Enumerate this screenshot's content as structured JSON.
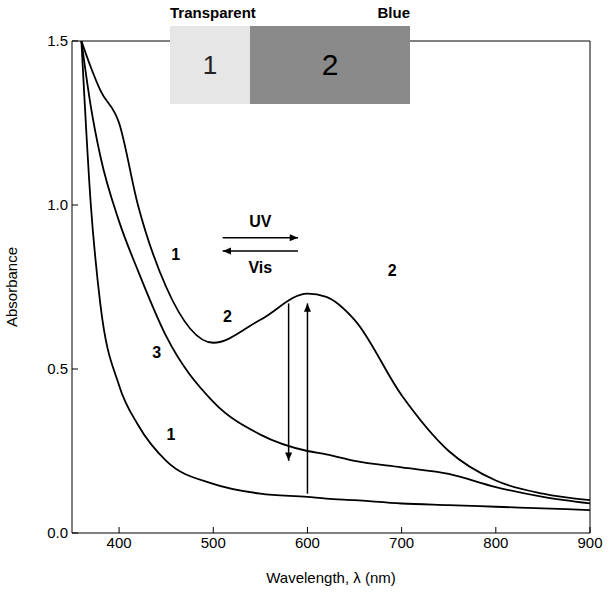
{
  "chart_data": {
    "type": "line",
    "x_label": "Wavelength, λ (nm)",
    "y_label": "Absorbance",
    "x": [
      360,
      370,
      380,
      400,
      420,
      450,
      500,
      550,
      600,
      620,
      650,
      700,
      750,
      800,
      850,
      900
    ],
    "series": [
      {
        "name": "1",
        "color": "#000000",
        "values": [
          1.5,
          1.0,
          0.7,
          0.45,
          0.33,
          0.22,
          0.15,
          0.12,
          0.11,
          0.105,
          0.1,
          0.09,
          0.085,
          0.08,
          0.075,
          0.07
        ]
      },
      {
        "name": "2",
        "color": "#000000",
        "values": [
          1.5,
          1.42,
          1.35,
          1.25,
          1.0,
          0.75,
          0.58,
          0.65,
          0.73,
          0.72,
          0.65,
          0.42,
          0.25,
          0.16,
          0.12,
          0.1
        ]
      },
      {
        "name": "3",
        "color": "#000000",
        "values": [
          1.5,
          1.3,
          1.15,
          0.95,
          0.8,
          0.6,
          0.4,
          0.3,
          0.25,
          0.24,
          0.22,
          0.2,
          0.18,
          0.14,
          0.11,
          0.09
        ]
      }
    ],
    "xlim": [
      350,
      900
    ],
    "xticks": [
      400,
      500,
      600,
      700,
      800,
      900
    ],
    "ylim": [
      0,
      1.5
    ],
    "yticks": [
      {
        "value": 0,
        "label": "0.0"
      },
      {
        "value": 0.5,
        "label": "0.5"
      },
      {
        "value": 1,
        "label": "1.0"
      },
      {
        "value": 1.5,
        "label": "1.5"
      }
    ],
    "annotations": [
      {
        "text": "1",
        "x": 455,
        "y": 0.3
      },
      {
        "text": "2",
        "x": 515,
        "y": 0.66
      },
      {
        "text": "3",
        "x": 440,
        "y": 0.55
      },
      {
        "text": "1",
        "x": 460,
        "y": 0.85
      },
      {
        "text": "2",
        "x": 690,
        "y": 0.8
      },
      {
        "text": "UV",
        "x": 550,
        "y": 0.95
      },
      {
        "text": "Vis",
        "x": 550,
        "y": 0.81
      }
    ],
    "arrows": [
      {
        "from": [
          580,
          0.7
        ],
        "to": [
          580,
          0.22
        ]
      },
      {
        "from": [
          600,
          0.12
        ],
        "to": [
          600,
          0.7
        ]
      },
      {
        "from": [
          510,
          0.9
        ],
        "to": [
          590,
          0.9
        ]
      },
      {
        "from": [
          590,
          0.86
        ],
        "to": [
          510,
          0.86
        ]
      }
    ],
    "inset": {
      "left_label": "Transparent",
      "right_label": "Blue",
      "left_text": "1",
      "right_text": "2"
    }
  }
}
